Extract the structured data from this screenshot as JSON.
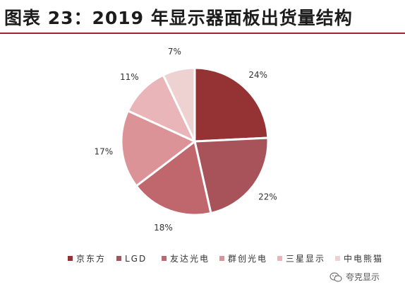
{
  "figure": {
    "title": "图表 23：2019 年显示器面板出货量结构"
  },
  "chart_data": {
    "type": "pie",
    "title": "图表 23：2019 年显示器面板出货量结构",
    "legend_position": "bottom",
    "slices": [
      {
        "label": "京东方",
        "value": 24,
        "value_label": "24%",
        "color": "#953234"
      },
      {
        "label": "LGD",
        "value": 22,
        "value_label": "22%",
        "color": "#a8525a"
      },
      {
        "label": "友达光电",
        "value": 18,
        "value_label": "18%",
        "color": "#c0666d"
      },
      {
        "label": "群创光电",
        "value": 17,
        "value_label": "17%",
        "color": "#dc9398"
      },
      {
        "label": "三星显示",
        "value": 11,
        "value_label": "11%",
        "color": "#eab5b8"
      },
      {
        "label": "中电熊猫",
        "value": 7,
        "value_label": "7%",
        "color": "#eed2d2"
      }
    ]
  },
  "watermark": {
    "icon": "wechat-icon",
    "text": "夸克显示"
  }
}
